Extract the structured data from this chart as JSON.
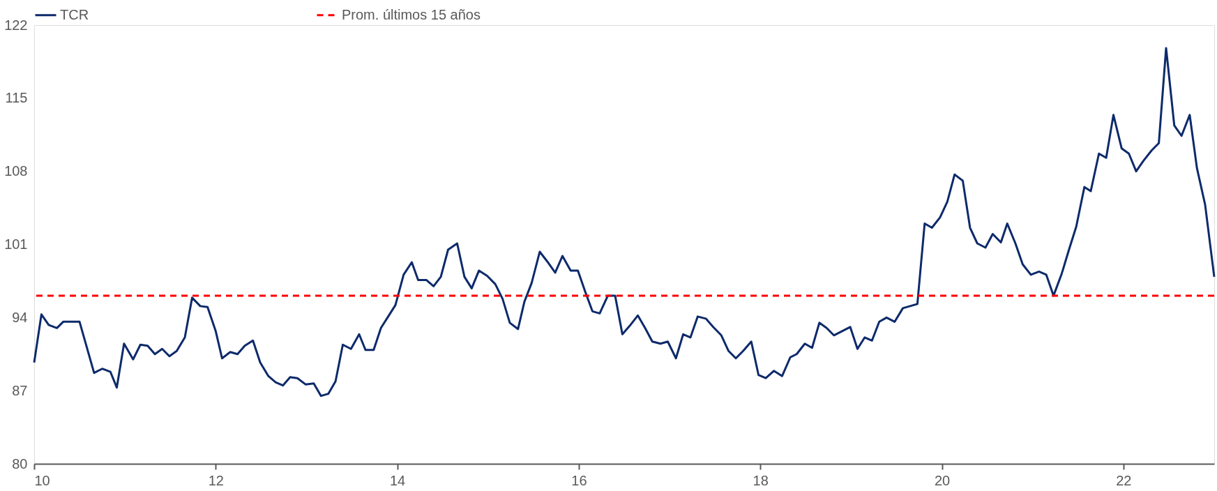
{
  "chart_data": {
    "type": "line",
    "x": [
      10.0,
      10.08,
      10.16,
      10.25,
      10.32,
      10.5,
      10.66,
      10.75,
      10.84,
      10.91,
      10.99,
      11.09,
      11.17,
      11.25,
      11.33,
      11.41,
      11.49,
      11.57,
      11.66,
      11.74,
      11.83,
      11.91,
      12.0,
      12.07,
      12.16,
      12.24,
      12.32,
      12.41,
      12.49,
      12.58,
      12.66,
      12.74,
      12.82,
      12.9,
      12.99,
      13.08,
      13.16,
      13.24,
      13.32,
      13.4,
      13.49,
      13.58,
      13.65,
      13.74,
      13.82,
      13.9,
      13.98,
      14.07,
      14.16,
      14.23,
      14.32,
      14.4,
      14.48,
      14.56,
      14.66,
      14.74,
      14.82,
      14.9,
      14.99,
      15.08,
      15.16,
      15.24,
      15.33,
      15.4,
      15.48,
      15.57,
      15.65,
      15.74,
      15.82,
      15.91,
      15.99,
      16.07,
      16.15,
      16.23,
      16.32,
      16.4,
      16.48,
      16.56,
      16.65,
      16.73,
      16.81,
      16.9,
      16.98,
      17.07,
      17.15,
      17.23,
      17.31,
      17.4,
      17.48,
      17.57,
      17.65,
      17.73,
      17.81,
      17.9,
      17.98,
      18.06,
      18.15,
      18.24,
      18.33,
      18.4,
      18.49,
      18.57,
      18.65,
      18.73,
      18.81,
      18.9,
      18.99,
      19.07,
      19.15,
      19.23,
      19.31,
      19.39,
      19.48,
      19.57,
      19.65,
      19.73,
      19.81,
      19.89,
      19.98,
      20.06,
      20.14,
      20.23,
      20.31,
      20.39,
      20.48,
      20.56,
      20.65,
      20.72,
      20.81,
      20.89,
      20.98,
      21.07,
      21.15,
      21.23,
      21.32,
      21.4,
      21.48,
      21.57,
      21.64,
      21.73,
      21.81,
      21.89,
      21.98,
      22.06,
      22.14,
      22.22,
      22.31,
      22.39,
      22.47,
      22.56,
      22.64,
      22.73,
      22.81,
      22.9,
      23.0
    ],
    "series": [
      {
        "name": "TCR",
        "color": "#0d2a6b",
        "values": [
          89.7,
          94.3,
          93.3,
          93.0,
          93.6,
          93.6,
          88.7,
          89.1,
          88.8,
          87.3,
          91.5,
          90.0,
          91.4,
          91.3,
          90.5,
          91.0,
          90.3,
          90.8,
          92.1,
          95.9,
          95.1,
          95.0,
          92.7,
          90.1,
          90.7,
          90.5,
          91.3,
          91.8,
          89.7,
          88.4,
          87.8,
          87.5,
          88.3,
          88.2,
          87.6,
          87.7,
          86.5,
          86.7,
          87.9,
          91.4,
          91.0,
          92.4,
          90.9,
          90.9,
          93.0,
          94.1,
          95.2,
          98.1,
          99.3,
          97.6,
          97.6,
          97.0,
          97.9,
          100.5,
          101.1,
          97.9,
          96.8,
          98.5,
          98.0,
          97.2,
          95.8,
          93.5,
          92.9,
          95.5,
          97.3,
          100.3,
          99.4,
          98.3,
          99.9,
          98.5,
          98.5,
          96.5,
          94.6,
          94.4,
          96.1,
          96.1,
          92.4,
          93.2,
          94.2,
          93.0,
          91.7,
          91.5,
          91.7,
          90.1,
          92.4,
          92.1,
          94.1,
          93.9,
          93.1,
          92.3,
          90.8,
          90.1,
          90.8,
          91.7,
          88.5,
          88.2,
          88.9,
          88.4,
          90.2,
          90.5,
          91.5,
          91.1,
          93.5,
          93.0,
          92.3,
          92.7,
          93.1,
          91.0,
          92.1,
          91.8,
          93.6,
          94.0,
          93.6,
          94.9,
          95.1,
          95.3,
          103.0,
          102.6,
          103.6,
          105.1,
          107.7,
          107.1,
          102.6,
          101.1,
          100.7,
          102.0,
          101.2,
          103.0,
          101.1,
          99.1,
          98.1,
          98.4,
          98.1,
          96.1,
          98.2,
          100.5,
          102.7,
          106.5,
          106.1,
          109.7,
          109.3,
          113.4,
          110.2,
          109.7,
          108.0,
          109.0,
          110.0,
          110.7,
          119.8,
          112.4,
          111.4,
          113.4,
          108.3,
          104.8,
          97.9
        ]
      }
    ],
    "ref_lines": [
      {
        "axis": "y",
        "value": 96.1,
        "label": "Prom. últimos 15 años",
        "color": "#ff0000",
        "line_style": "dashed"
      }
    ],
    "xlim": [
      10,
      23
    ],
    "xticks": [
      10,
      12,
      14,
      16,
      18,
      20,
      22
    ],
    "ylim": [
      80,
      122
    ],
    "yticks": [
      80,
      87,
      94,
      101,
      108,
      115,
      122
    ],
    "grid": false,
    "legend": "top",
    "line_style": "solid",
    "marker": "none"
  }
}
